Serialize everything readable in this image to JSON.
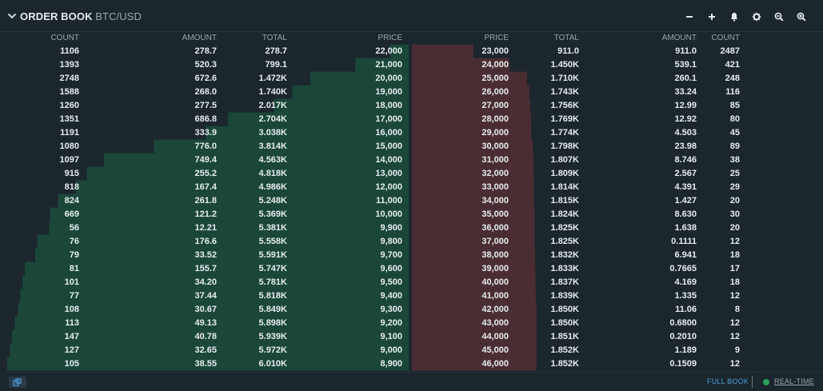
{
  "header": {
    "title": "ORDER BOOK",
    "pair": "BTC/USD",
    "tools": [
      "minus-icon",
      "plus-icon",
      "bell-icon",
      "gear-icon",
      "zoom-out-icon",
      "zoom-in-icon"
    ]
  },
  "columns": {
    "bids": [
      "COUNT",
      "AMOUNT",
      "TOTAL",
      "PRICE"
    ],
    "asks": [
      "PRICE",
      "TOTAL",
      "AMOUNT",
      "COUNT"
    ]
  },
  "colors": {
    "bid_depth": "#1b4739",
    "ask_depth": "#4a2d33",
    "accent_link": "#4e9dd8",
    "live_dot": "#27a05a"
  },
  "max_total": 6010,
  "bids": [
    {
      "count": "1106",
      "amount": "278.7",
      "total": "278.7",
      "price": "22,000",
      "total_num": 278.7
    },
    {
      "count": "1393",
      "amount": "520.3",
      "total": "799.1",
      "price": "21,000",
      "total_num": 799.1
    },
    {
      "count": "2748",
      "amount": "672.6",
      "total": "1.472K",
      "price": "20,000",
      "total_num": 1472
    },
    {
      "count": "1588",
      "amount": "268.0",
      "total": "1.740K",
      "price": "19,000",
      "total_num": 1740
    },
    {
      "count": "1260",
      "amount": "277.5",
      "total": "2.017K",
      "price": "18,000",
      "total_num": 2017
    },
    {
      "count": "1351",
      "amount": "686.8",
      "total": "2.704K",
      "price": "17,000",
      "total_num": 2704
    },
    {
      "count": "1191",
      "amount": "333.9",
      "total": "3.038K",
      "price": "16,000",
      "total_num": 3038
    },
    {
      "count": "1080",
      "amount": "776.0",
      "total": "3.814K",
      "price": "15,000",
      "total_num": 3814
    },
    {
      "count": "1097",
      "amount": "749.4",
      "total": "4.563K",
      "price": "14,000",
      "total_num": 4563
    },
    {
      "count": "915",
      "amount": "255.2",
      "total": "4.818K",
      "price": "13,000",
      "total_num": 4818
    },
    {
      "count": "818",
      "amount": "167.4",
      "total": "4.986K",
      "price": "12,000",
      "total_num": 4986
    },
    {
      "count": "824",
      "amount": "261.8",
      "total": "5.248K",
      "price": "11,000",
      "total_num": 5248
    },
    {
      "count": "669",
      "amount": "121.2",
      "total": "5.369K",
      "price": "10,000",
      "total_num": 5369
    },
    {
      "count": "56",
      "amount": "12.21",
      "total": "5.381K",
      "price": "9,900",
      "total_num": 5381
    },
    {
      "count": "76",
      "amount": "176.6",
      "total": "5.558K",
      "price": "9,800",
      "total_num": 5558
    },
    {
      "count": "79",
      "amount": "33.52",
      "total": "5.591K",
      "price": "9,700",
      "total_num": 5591
    },
    {
      "count": "81",
      "amount": "155.7",
      "total": "5.747K",
      "price": "9,600",
      "total_num": 5747
    },
    {
      "count": "101",
      "amount": "34.20",
      "total": "5.781K",
      "price": "9,500",
      "total_num": 5781
    },
    {
      "count": "77",
      "amount": "37.44",
      "total": "5.818K",
      "price": "9,400",
      "total_num": 5818
    },
    {
      "count": "108",
      "amount": "30.67",
      "total": "5.849K",
      "price": "9,300",
      "total_num": 5849
    },
    {
      "count": "113",
      "amount": "49.13",
      "total": "5.898K",
      "price": "9,200",
      "total_num": 5898
    },
    {
      "count": "147",
      "amount": "40.78",
      "total": "5.939K",
      "price": "9,100",
      "total_num": 5939
    },
    {
      "count": "127",
      "amount": "32.65",
      "total": "5.972K",
      "price": "9,000",
      "total_num": 5972
    },
    {
      "count": "105",
      "amount": "38.55",
      "total": "6.010K",
      "price": "8,900",
      "total_num": 6010
    }
  ],
  "asks": [
    {
      "price": "23,000",
      "total": "911.0",
      "amount": "911.0",
      "count": "2487",
      "total_num": 911
    },
    {
      "price": "24,000",
      "total": "1.450K",
      "amount": "539.1",
      "count": "421",
      "total_num": 1450
    },
    {
      "price": "25,000",
      "total": "1.710K",
      "amount": "260.1",
      "count": "248",
      "total_num": 1710
    },
    {
      "price": "26,000",
      "total": "1.743K",
      "amount": "33.24",
      "count": "116",
      "total_num": 1743
    },
    {
      "price": "27,000",
      "total": "1.756K",
      "amount": "12.99",
      "count": "85",
      "total_num": 1756
    },
    {
      "price": "28,000",
      "total": "1.769K",
      "amount": "12.92",
      "count": "80",
      "total_num": 1769
    },
    {
      "price": "29,000",
      "total": "1.774K",
      "amount": "4.503",
      "count": "45",
      "total_num": 1774
    },
    {
      "price": "30,000",
      "total": "1.798K",
      "amount": "23.98",
      "count": "89",
      "total_num": 1798
    },
    {
      "price": "31,000",
      "total": "1.807K",
      "amount": "8.746",
      "count": "38",
      "total_num": 1807
    },
    {
      "price": "32,000",
      "total": "1.809K",
      "amount": "2.567",
      "count": "25",
      "total_num": 1809
    },
    {
      "price": "33,000",
      "total": "1.814K",
      "amount": "4.391",
      "count": "29",
      "total_num": 1814
    },
    {
      "price": "34,000",
      "total": "1.815K",
      "amount": "1.427",
      "count": "20",
      "total_num": 1815
    },
    {
      "price": "35,000",
      "total": "1.824K",
      "amount": "8.630",
      "count": "30",
      "total_num": 1824
    },
    {
      "price": "36,000",
      "total": "1.825K",
      "amount": "1.638",
      "count": "20",
      "total_num": 1825
    },
    {
      "price": "37,000",
      "total": "1.825K",
      "amount": "0.1111",
      "count": "12",
      "total_num": 1825
    },
    {
      "price": "38,000",
      "total": "1.832K",
      "amount": "6.941",
      "count": "18",
      "total_num": 1832
    },
    {
      "price": "39,000",
      "total": "1.833K",
      "amount": "0.7665",
      "count": "17",
      "total_num": 1833
    },
    {
      "price": "40,000",
      "total": "1.837K",
      "amount": "4.169",
      "count": "18",
      "total_num": 1837
    },
    {
      "price": "41,000",
      "total": "1.839K",
      "amount": "1.335",
      "count": "12",
      "total_num": 1839
    },
    {
      "price": "42,000",
      "total": "1.850K",
      "amount": "11.06",
      "count": "8",
      "total_num": 1850
    },
    {
      "price": "43,000",
      "total": "1.850K",
      "amount": "0.6800",
      "count": "12",
      "total_num": 1850
    },
    {
      "price": "44,000",
      "total": "1.851K",
      "amount": "0.2010",
      "count": "12",
      "total_num": 1851
    },
    {
      "price": "45,000",
      "total": "1.852K",
      "amount": "1.189",
      "count": "9",
      "total_num": 1852
    },
    {
      "price": "46,000",
      "total": "1.852K",
      "amount": "0.1509",
      "count": "12",
      "total_num": 1852
    }
  ],
  "footer": {
    "full_book": "FULL BOOK",
    "realtime": "REAL-TIME"
  }
}
